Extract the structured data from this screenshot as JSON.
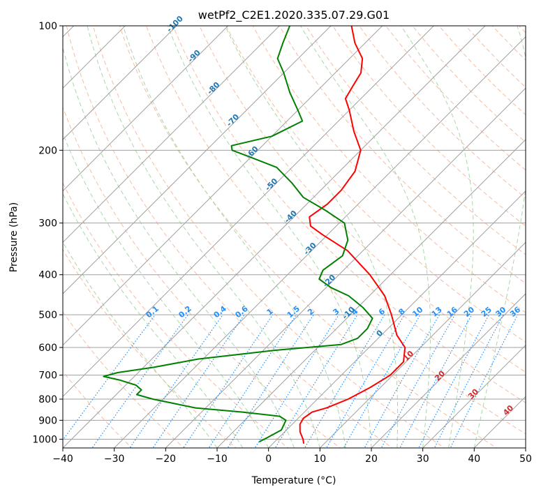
{
  "chart_data": {
    "type": "line",
    "subtype": "skew-T log-p diagram",
    "title": "wetPf2_C2E1.2020.335.07.29.G01",
    "xlabel": "Temperature (°C)",
    "ylabel": "Pressure (hPa)",
    "xlim": [
      -40,
      50
    ],
    "ylim": [
      1050,
      100
    ],
    "yscale": "log",
    "x_ticks": [
      "−40",
      "−30",
      "−20",
      "−10",
      "0",
      "10",
      "20",
      "30",
      "40",
      "50"
    ],
    "y_ticks": [
      "100",
      "200",
      "300",
      "400",
      "500",
      "600",
      "700",
      "800",
      "900",
      "1000"
    ],
    "grid": true,
    "series": [
      {
        "role": "temperature",
        "color": "#ff0000",
        "points": [
          {
            "p": 1025,
            "t": 6.0
          },
          {
            "p": 1000,
            "t": 5.0
          },
          {
            "p": 960,
            "t": 3.0
          },
          {
            "p": 920,
            "t": 1.5
          },
          {
            "p": 890,
            "t": 1.0
          },
          {
            "p": 860,
            "t": 1.5
          },
          {
            "p": 840,
            "t": 3.5
          },
          {
            "p": 800,
            "t": 6.0
          },
          {
            "p": 750,
            "t": 8.0
          },
          {
            "p": 700,
            "t": 9.5
          },
          {
            "p": 650,
            "t": 9.5
          },
          {
            "p": 600,
            "t": 7.0
          },
          {
            "p": 560,
            "t": 3.0
          },
          {
            "p": 500,
            "t": -2.0
          },
          {
            "p": 450,
            "t": -7.0
          },
          {
            "p": 400,
            "t": -14.0
          },
          {
            "p": 350,
            "t": -23.0
          },
          {
            "p": 320,
            "t": -31.0
          },
          {
            "p": 305,
            "t": -35.0
          },
          {
            "p": 290,
            "t": -37.0
          },
          {
            "p": 270,
            "t": -36.0
          },
          {
            "p": 250,
            "t": -36.0
          },
          {
            "p": 225,
            "t": -37.0
          },
          {
            "p": 200,
            "t": -40.0
          },
          {
            "p": 180,
            "t": -45.0
          },
          {
            "p": 160,
            "t": -50.0
          },
          {
            "p": 150,
            "t": -53.0
          },
          {
            "p": 140,
            "t": -54.0
          },
          {
            "p": 130,
            "t": -55.0
          },
          {
            "p": 120,
            "t": -57.5
          },
          {
            "p": 110,
            "t": -62.0
          },
          {
            "p": 100,
            "t": -66.0
          }
        ]
      },
      {
        "role": "dewpoint",
        "color": "#008000",
        "points": [
          {
            "p": 1015,
            "t": -3.0
          },
          {
            "p": 1000,
            "t": -2.5
          },
          {
            "p": 950,
            "t": -1.0
          },
          {
            "p": 900,
            "t": -2.0
          },
          {
            "p": 880,
            "t": -4.0
          },
          {
            "p": 860,
            "t": -12.0
          },
          {
            "p": 840,
            "t": -22.0
          },
          {
            "p": 800,
            "t": -32.0
          },
          {
            "p": 780,
            "t": -36.0
          },
          {
            "p": 760,
            "t": -36.0
          },
          {
            "p": 740,
            "t": -38.0
          },
          {
            "p": 720,
            "t": -42.0
          },
          {
            "p": 705,
            "t": -46.0
          },
          {
            "p": 690,
            "t": -44.0
          },
          {
            "p": 670,
            "t": -38.0
          },
          {
            "p": 640,
            "t": -31.0
          },
          {
            "p": 610,
            "t": -18.0
          },
          {
            "p": 590,
            "t": -6.0
          },
          {
            "p": 570,
            "t": -4.0
          },
          {
            "p": 540,
            "t": -4.0
          },
          {
            "p": 510,
            "t": -5.0
          },
          {
            "p": 480,
            "t": -9.0
          },
          {
            "p": 450,
            "t": -14.0
          },
          {
            "p": 430,
            "t": -19.0
          },
          {
            "p": 410,
            "t": -23.0
          },
          {
            "p": 390,
            "t": -24.0
          },
          {
            "p": 360,
            "t": -23.0
          },
          {
            "p": 330,
            "t": -25.0
          },
          {
            "p": 300,
            "t": -29.0
          },
          {
            "p": 280,
            "t": -35.0
          },
          {
            "p": 260,
            "t": -42.0
          },
          {
            "p": 240,
            "t": -47.0
          },
          {
            "p": 220,
            "t": -53.0
          },
          {
            "p": 208,
            "t": -60.0
          },
          {
            "p": 200,
            "t": -65.0
          },
          {
            "p": 195,
            "t": -66.0
          },
          {
            "p": 185,
            "t": -60.0
          },
          {
            "p": 170,
            "t": -57.0
          },
          {
            "p": 160,
            "t": -60.0
          },
          {
            "p": 145,
            "t": -65.0
          },
          {
            "p": 130,
            "t": -70.0
          },
          {
            "p": 120,
            "t": -74.0
          },
          {
            "p": 110,
            "t": -76.0
          },
          {
            "p": 100,
            "t": -78.0
          }
        ]
      }
    ],
    "dry_adiabat_labels": [
      "-100",
      "-90",
      "-80",
      "-70",
      "-60",
      "-50",
      "-40",
      "-30",
      "-20",
      "-10",
      "0",
      "10",
      "20",
      "30",
      "40"
    ],
    "mixing_ratio_labels": [
      "0.1",
      "0.2",
      "0.4",
      "0.6",
      "1",
      "1.5",
      "2",
      "3",
      "4",
      "6",
      "8",
      "10",
      "13",
      "16",
      "20",
      "25",
      "30",
      "36"
    ],
    "reference_lines": {
      "isotherm_color": "#a0a0a0",
      "dry_adiabat_color": "#f4a582",
      "moist_adiabat_color": "#9fd39f",
      "mixing_ratio_color": "#1e90ff"
    }
  }
}
